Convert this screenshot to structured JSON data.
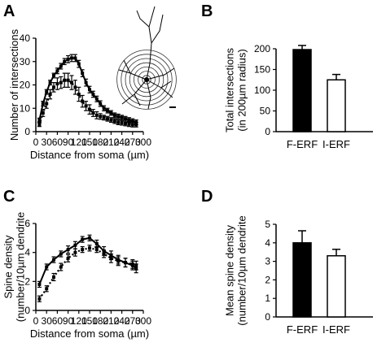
{
  "chart_data": [
    {
      "panel": "A",
      "type": "line",
      "xlabel": "Distance from soma (µm)",
      "ylabel": "Number of intersections",
      "xlim": [
        0,
        300
      ],
      "ylim": [
        0,
        40
      ],
      "xticks": [
        0,
        30,
        60,
        90,
        120,
        150,
        180,
        210,
        240,
        270,
        300
      ],
      "yticks": [
        0,
        10,
        20,
        30,
        40
      ],
      "series": [
        {
          "style": "solid",
          "x": [
            10,
            20,
            30,
            40,
            50,
            60,
            70,
            80,
            90,
            100,
            110,
            120,
            130,
            140,
            150,
            160,
            170,
            180,
            190,
            200,
            210,
            220,
            230,
            240,
            250,
            260,
            270,
            280
          ],
          "y": [
            5,
            12,
            17,
            21,
            24,
            26,
            28,
            30,
            31,
            31.5,
            31.5,
            29,
            25,
            21,
            18,
            16,
            14,
            12,
            10,
            9,
            8,
            7,
            6.5,
            6,
            5.5,
            5,
            4.5,
            4
          ],
          "err": [
            0.8,
            1,
            1,
            1,
            1,
            1.2,
            1.2,
            1.3,
            1.5,
            1.5,
            1.5,
            1.5,
            1.5,
            1.5,
            1.4,
            1.3,
            1.2,
            1.2,
            1.1,
            1,
            1,
            1,
            1,
            1,
            1,
            1,
            1,
            1
          ]
        },
        {
          "style": "dotted",
          "x": [
            10,
            20,
            30,
            40,
            50,
            60,
            70,
            80,
            90,
            100,
            110,
            120,
            130,
            140,
            150,
            160,
            170,
            180,
            190,
            200,
            210,
            220,
            230,
            240,
            250,
            260,
            270,
            280
          ],
          "y": [
            3,
            8,
            12,
            16,
            19,
            20.5,
            21,
            22,
            22,
            21,
            19,
            16,
            13,
            11,
            9.5,
            8,
            7,
            6.5,
            6,
            5.5,
            5,
            4.5,
            4,
            3.8,
            3.5,
            3.2,
            3,
            3
          ],
          "err": [
            0.8,
            1.5,
            2,
            2,
            2,
            2.5,
            2.5,
            3,
            3,
            3,
            3,
            3,
            2.5,
            2,
            2,
            1.5,
            1.5,
            1.2,
            1,
            1,
            1,
            1,
            1,
            1,
            1,
            1,
            1,
            1
          ]
        }
      ]
    },
    {
      "panel": "B",
      "type": "bar",
      "categories": [
        "F-ERF",
        "I-ERF"
      ],
      "values": [
        198,
        125
      ],
      "err": [
        10,
        13
      ],
      "colors": [
        "#000000",
        "#ffffff"
      ],
      "ylabel": "Total intersections\n(in 200µm radius)",
      "ylim": [
        0,
        200
      ],
      "yticks": [
        0,
        50,
        100,
        150,
        200
      ]
    },
    {
      "panel": "C",
      "type": "line",
      "xlabel": "Distance from soma (µm)",
      "ylabel": "Spine density\n(number/10µm dendrite",
      "xlim": [
        0,
        300
      ],
      "ylim": [
        0,
        6
      ],
      "xticks": [
        0,
        30,
        60,
        90,
        120,
        150,
        180,
        210,
        240,
        270,
        300
      ],
      "yticks": [
        0,
        2,
        4,
        6
      ],
      "series": [
        {
          "style": "solid",
          "x": [
            10,
            30,
            50,
            70,
            90,
            110,
            130,
            150,
            170,
            190,
            210,
            230,
            250,
            270,
            280
          ],
          "y": [
            1.8,
            3.0,
            3.5,
            3.9,
            4.2,
            4.5,
            4.9,
            5.0,
            4.6,
            4.1,
            3.8,
            3.5,
            3.3,
            3.1,
            2.9
          ],
          "err": [
            0.2,
            0.2,
            0.2,
            0.2,
            0.25,
            0.25,
            0.2,
            0.2,
            0.25,
            0.3,
            0.3,
            0.3,
            0.3,
            0.3,
            0.3
          ]
        },
        {
          "style": "dotted",
          "x": [
            10,
            30,
            50,
            70,
            90,
            110,
            130,
            150,
            170,
            190,
            210,
            230,
            250,
            270,
            280
          ],
          "y": [
            0.8,
            1.5,
            2.3,
            3.0,
            3.6,
            4.0,
            4.2,
            4.3,
            4.2,
            3.9,
            3.6,
            3.4,
            3.3,
            3.2,
            3.1
          ],
          "err": [
            0.2,
            0.2,
            0.25,
            0.25,
            0.25,
            0.25,
            0.2,
            0.2,
            0.2,
            0.25,
            0.3,
            0.3,
            0.3,
            0.3,
            0.3
          ]
        }
      ]
    },
    {
      "panel": "D",
      "type": "bar",
      "categories": [
        "F-ERF",
        "I-ERF"
      ],
      "values": [
        4.0,
        3.3
      ],
      "err": [
        0.65,
        0.35
      ],
      "colors": [
        "#000000",
        "#ffffff"
      ],
      "ylabel": "Mean spine density\n(number/10µm dendrite",
      "ylim": [
        0,
        5
      ],
      "yticks": [
        0,
        1,
        2,
        3,
        4,
        5
      ]
    }
  ],
  "inset": {
    "icon": "neuron-sholl-rings-icon",
    "ring_count": 7
  }
}
